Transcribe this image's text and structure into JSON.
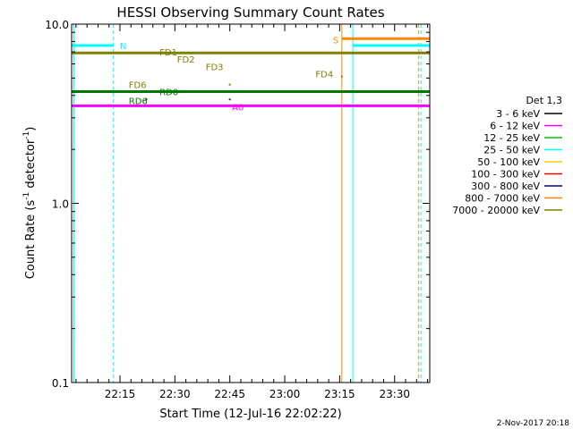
{
  "chart_data": {
    "type": "line",
    "title": "HESSI Observing Summary Count Rates",
    "xlabel": "Start Time (12-Jul-16 22:02:22)",
    "ylabel_main": "Count Rate (s",
    "ylabel_sup1": "-1",
    "ylabel_mid": " detector",
    "ylabel_sup2": "-1",
    "ylabel_end": ")",
    "yscale": "log",
    "ylim": [
      0.1,
      10.0
    ],
    "xlim_minutes": [
      22.03,
      23.66
    ],
    "xticks": [
      {
        "label": "22:15",
        "value": 22.25
      },
      {
        "label": "22:30",
        "value": 22.5
      },
      {
        "label": "22:45",
        "value": 22.75
      },
      {
        "label": "23:00",
        "value": 23.0
      },
      {
        "label": "23:15",
        "value": 23.25
      },
      {
        "label": "23:30",
        "value": 23.5
      }
    ],
    "yticks": [
      {
        "label": "10.0",
        "value": 10.0
      },
      {
        "label": "1.0",
        "value": 1.0
      },
      {
        "label": "0.1",
        "value": 0.1
      }
    ],
    "legend": {
      "title": "Det 1,3",
      "placement": "right",
      "entries": [
        {
          "label": "3 - 6 keV",
          "color": "#000000"
        },
        {
          "label": "6 - 12 keV",
          "color": "#ff00ff"
        },
        {
          "label": "12 - 25 keV",
          "color": "#00cc00"
        },
        {
          "label": "25 - 50 keV",
          "color": "#00ffff"
        },
        {
          "label": "50 - 100 keV",
          "color": "#ffcc00"
        },
        {
          "label": "100 - 300 keV",
          "color": "#ff0000"
        },
        {
          "label": "300 - 800 keV",
          "color": "#000088"
        },
        {
          "label": "800 - 7000 keV",
          "color": "#ff8800"
        },
        {
          "label": "7000 - 20000 keV",
          "color": "#808000"
        }
      ]
    },
    "series": [
      {
        "name": "25 - 50 keV",
        "color": "#00ffff",
        "segments": [
          [
            22.03,
            22.22,
            7.6
          ],
          [
            23.31,
            23.66,
            7.6
          ]
        ]
      },
      {
        "name": "7000 - 20000 keV",
        "color": "#808000",
        "segments": [
          [
            22.03,
            23.66,
            6.9
          ]
        ]
      },
      {
        "name": "12 - 25 keV",
        "color": "#007700",
        "segments": [
          [
            22.03,
            23.66,
            4.2
          ]
        ]
      },
      {
        "name": "6 - 12 keV",
        "color": "#ff00ff",
        "segments": [
          [
            22.03,
            23.66,
            3.5
          ]
        ]
      },
      {
        "name": "800 - 7000 keV",
        "color": "#ff8800",
        "segments": [
          [
            23.26,
            23.66,
            8.3
          ]
        ]
      }
    ],
    "dots": [
      {
        "x": 22.37,
        "y": 3.8,
        "color": "#005500"
      },
      {
        "x": 22.75,
        "y": 4.6,
        "color": "#808000"
      },
      {
        "x": 22.75,
        "y": 3.8,
        "color": "#005500"
      },
      {
        "x": 23.26,
        "y": 5.1,
        "color": "#808000"
      }
    ],
    "vlines": [
      {
        "x": 22.04,
        "color": "#00ffff",
        "dashed": false
      },
      {
        "x": 22.22,
        "color": "#00ffff",
        "dashed": true
      },
      {
        "x": 23.26,
        "color": "#ff8800",
        "dashed": false
      },
      {
        "x": 23.31,
        "color": "#00ffff",
        "dashed": false
      },
      {
        "x": 23.61,
        "color": "#ff8800",
        "dashed": true
      },
      {
        "x": 23.62,
        "color": "#00ffff",
        "dashed": true
      }
    ],
    "annotations": [
      {
        "text": "N",
        "x": 22.25,
        "y": 7.6,
        "color": "#00ffff"
      },
      {
        "text": "S",
        "x": 23.22,
        "y": 8.2,
        "color": "#ff8800"
      },
      {
        "text": "FD1",
        "x": 22.43,
        "y": 7.0,
        "color": "#808000"
      },
      {
        "text": "FD2",
        "x": 22.51,
        "y": 6.4,
        "color": "#808000"
      },
      {
        "text": "FD3",
        "x": 22.64,
        "y": 5.8,
        "color": "#808000"
      },
      {
        "text": "FD4",
        "x": 23.14,
        "y": 5.3,
        "color": "#808000"
      },
      {
        "text": "FD6",
        "x": 22.29,
        "y": 4.6,
        "color": "#808000"
      },
      {
        "text": "RD0",
        "x": 22.43,
        "y": 4.2,
        "color": "#007700"
      },
      {
        "text": "RD6",
        "x": 22.29,
        "y": 3.75,
        "color": "#007700"
      },
      {
        "text": "A0",
        "x": 22.76,
        "y": 3.45,
        "color": "#ff00ff"
      }
    ],
    "footer_date": "2-Nov-2017 20:18"
  }
}
